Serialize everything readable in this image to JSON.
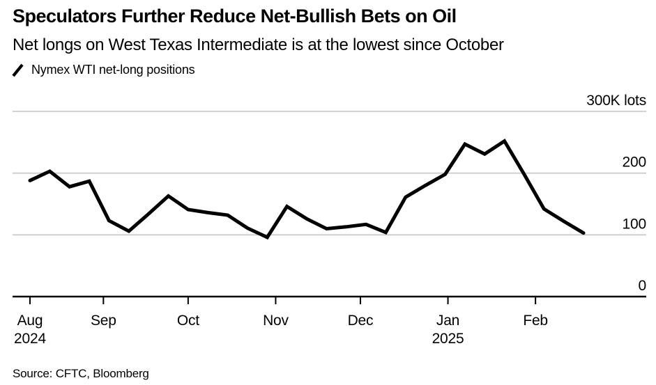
{
  "header": {
    "title": "Speculators Further Reduce Net-Bullish Bets on Oil",
    "subtitle": "Net longs on West Texas Intermediate is at the lowest since October"
  },
  "legend": {
    "icon": "line-slash-icon",
    "label": "Nymex WTI net-long positions"
  },
  "footer": {
    "source": "Source: CFTC, Bloomberg"
  },
  "colors": {
    "line": "#000000",
    "grid": "#cccccc",
    "axis": "#000000",
    "text": "#000000",
    "background": "#ffffff"
  },
  "chart_data": {
    "type": "line",
    "title": "Speculators Further Reduce Net-Bullish Bets on Oil",
    "subtitle": "Net longs on West Texas Intermediate is at the lowest since October",
    "unit": "K lots",
    "ylim": [
      0,
      300
    ],
    "grid": "horizontal",
    "legend_position": "top-left",
    "yticks": [
      {
        "value": 300,
        "label": "300K lots"
      },
      {
        "value": 200,
        "label": "200"
      },
      {
        "value": 100,
        "label": "100"
      },
      {
        "value": 0,
        "label": "0"
      }
    ],
    "xticks": [
      {
        "label": "Aug",
        "sublabel": "2024",
        "day": 0
      },
      {
        "label": "Sep",
        "day": 26
      },
      {
        "label": "Oct",
        "day": 56
      },
      {
        "label": "Nov",
        "day": 87
      },
      {
        "label": "Dec",
        "day": 117
      },
      {
        "label": "Jan",
        "sublabel": "2025",
        "day": 148
      },
      {
        "label": "Feb",
        "day": 179
      }
    ],
    "series": [
      {
        "name": "Nymex WTI net-long positions",
        "color": "#000000",
        "points": [
          {
            "date": "Aug 6, 2024",
            "day": 0,
            "value": 188
          },
          {
            "date": "Aug 13, 2024",
            "day": 7,
            "value": 203
          },
          {
            "date": "Aug 20, 2024",
            "day": 14,
            "value": 178
          },
          {
            "date": "Aug 27, 2024",
            "day": 21,
            "value": 187
          },
          {
            "date": "Sep 3, 2024",
            "day": 28,
            "value": 123
          },
          {
            "date": "Sep 10, 2024",
            "day": 35,
            "value": 106
          },
          {
            "date": "Sep 17, 2024",
            "day": 42,
            "value": 134
          },
          {
            "date": "Sep 24, 2024",
            "day": 49,
            "value": 163
          },
          {
            "date": "Oct 1, 2024",
            "day": 56,
            "value": 141
          },
          {
            "date": "Oct 8, 2024",
            "day": 63,
            "value": 136
          },
          {
            "date": "Oct 15, 2024",
            "day": 70,
            "value": 132
          },
          {
            "date": "Oct 22, 2024",
            "day": 77,
            "value": 111
          },
          {
            "date": "Oct 29, 2024",
            "day": 84,
            "value": 96
          },
          {
            "date": "Nov 5, 2024",
            "day": 91,
            "value": 146
          },
          {
            "date": "Nov 12, 2024",
            "day": 98,
            "value": 126
          },
          {
            "date": "Nov 19, 2024",
            "day": 105,
            "value": 110
          },
          {
            "date": "Nov 26, 2024",
            "day": 112,
            "value": 113
          },
          {
            "date": "Dec 3, 2024",
            "day": 119,
            "value": 117
          },
          {
            "date": "Dec 10, 2024",
            "day": 126,
            "value": 104
          },
          {
            "date": "Dec 17, 2024",
            "day": 133,
            "value": 161
          },
          {
            "date": "Dec 24, 2024",
            "day": 140,
            "value": 180
          },
          {
            "date": "Dec 31, 2024",
            "day": 147,
            "value": 198
          },
          {
            "date": "Jan 7, 2025",
            "day": 154,
            "value": 247
          },
          {
            "date": "Jan 14, 2025",
            "day": 161,
            "value": 231
          },
          {
            "date": "Jan 21, 2025",
            "day": 168,
            "value": 252
          },
          {
            "date": "Jan 28, 2025",
            "day": 175,
            "value": 198
          },
          {
            "date": "Feb 4, 2025",
            "day": 182,
            "value": 142
          },
          {
            "date": "Feb 11, 2025",
            "day": 189,
            "value": 122
          },
          {
            "date": "Feb 18, 2025",
            "day": 196,
            "value": 103
          }
        ]
      }
    ]
  }
}
